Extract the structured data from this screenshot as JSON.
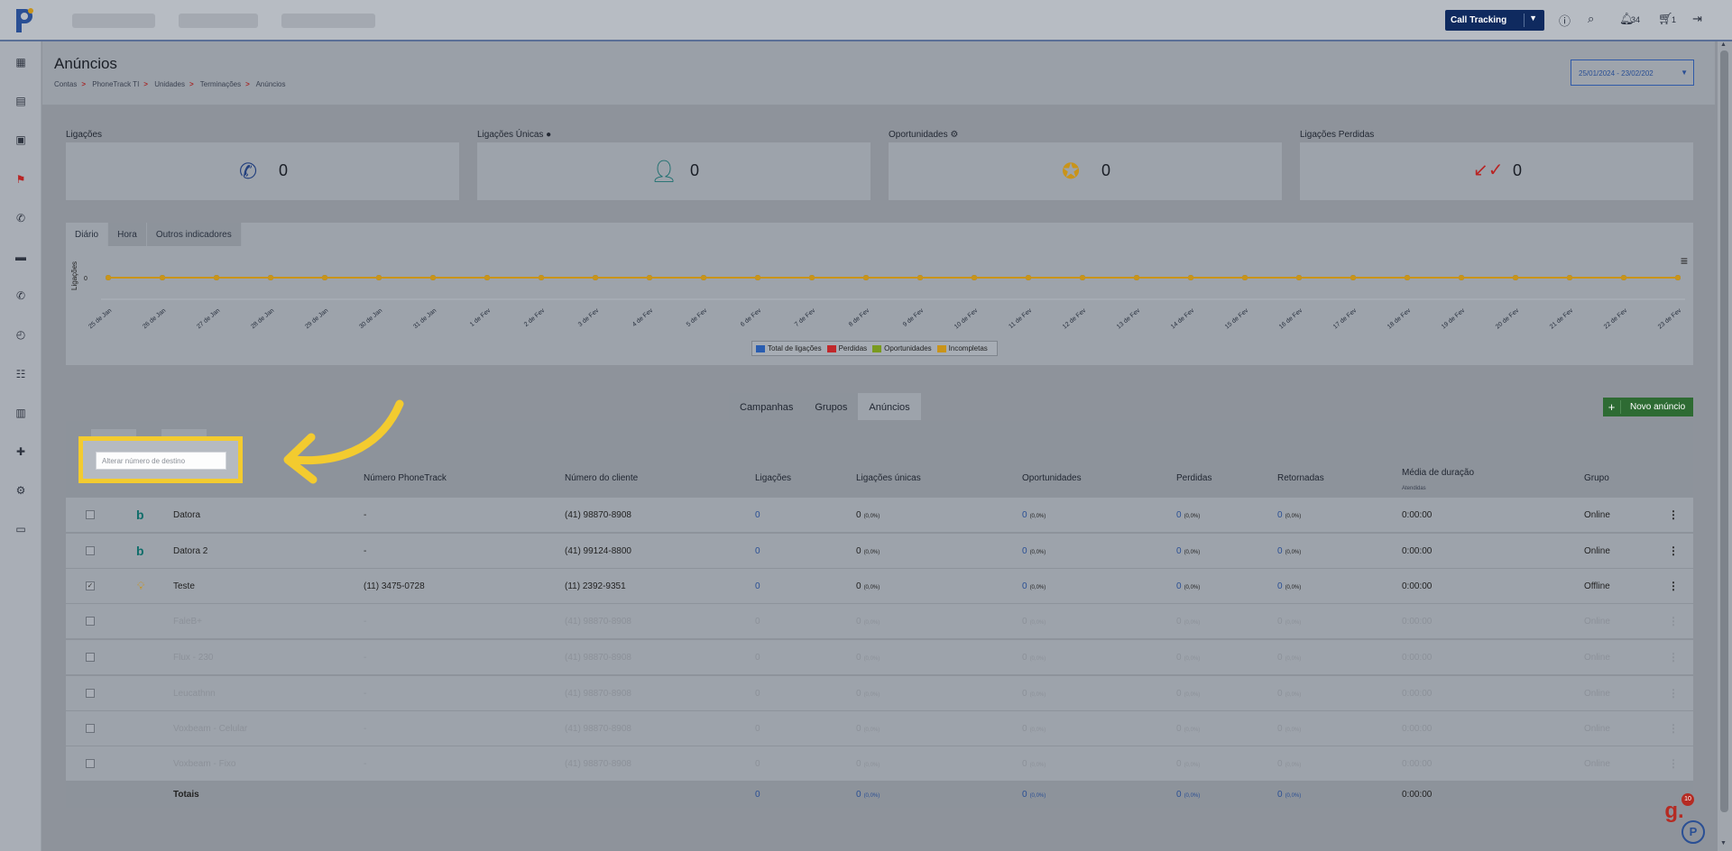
{
  "topbar": {
    "product_button": "Call Tracking",
    "notifications_count": "34",
    "cart_count": "1"
  },
  "page": {
    "title": "Anúncios",
    "breadcrumb": [
      "Contas",
      "PhoneTrack TI",
      "Unidades",
      "Terminações",
      "Anúncios"
    ],
    "date_range": "25/01/2024 - 23/02/202"
  },
  "stats": [
    {
      "label": "Ligações",
      "value": "0",
      "icon": "phone-icon"
    },
    {
      "label": "Ligações Únicas",
      "value": "0",
      "icon": "user-icon"
    },
    {
      "label": "Oportunidades",
      "value": "0",
      "icon": "star-icon"
    },
    {
      "label": "Ligações Perdidas",
      "value": "0",
      "icon": "missed-call-icon"
    }
  ],
  "chart_tabs": [
    "Diário",
    "Hora",
    "Outros indicadores"
  ],
  "chart_data": {
    "type": "line",
    "ylabel": "Ligações",
    "categories": [
      "25 de Jan",
      "26 de Jan",
      "27 de Jan",
      "28 de Jan",
      "29 de Jan",
      "30 de Jan",
      "31 de Jan",
      "1 de Fev",
      "2 de Fev",
      "3 de Fev",
      "4 de Fev",
      "5 de Fev",
      "6 de Fev",
      "7 de Fev",
      "8 de Fev",
      "9 de Fev",
      "10 de Fev",
      "11 de Fev",
      "12 de Fev",
      "13 de Fev",
      "14 de Fev",
      "15 de Fev",
      "16 de Fev",
      "17 de Fev",
      "18 de Fev",
      "19 de Fev",
      "20 de Fev",
      "21 de Fev",
      "22 de Fev",
      "23 de Fev"
    ],
    "series": [
      {
        "name": "Total de ligações",
        "color": "#2a5db0",
        "values": [
          0,
          0,
          0,
          0,
          0,
          0,
          0,
          0,
          0,
          0,
          0,
          0,
          0,
          0,
          0,
          0,
          0,
          0,
          0,
          0,
          0,
          0,
          0,
          0,
          0,
          0,
          0,
          0,
          0,
          0
        ]
      },
      {
        "name": "Perdidas",
        "color": "#c0282b",
        "values": [
          0,
          0,
          0,
          0,
          0,
          0,
          0,
          0,
          0,
          0,
          0,
          0,
          0,
          0,
          0,
          0,
          0,
          0,
          0,
          0,
          0,
          0,
          0,
          0,
          0,
          0,
          0,
          0,
          0,
          0
        ]
      },
      {
        "name": "Oportunidades",
        "color": "#7a9a1f",
        "values": [
          0,
          0,
          0,
          0,
          0,
          0,
          0,
          0,
          0,
          0,
          0,
          0,
          0,
          0,
          0,
          0,
          0,
          0,
          0,
          0,
          0,
          0,
          0,
          0,
          0,
          0,
          0,
          0,
          0,
          0
        ]
      },
      {
        "name": "Incompletas",
        "color": "#c9941a",
        "values": [
          0,
          0,
          0,
          0,
          0,
          0,
          0,
          0,
          0,
          0,
          0,
          0,
          0,
          0,
          0,
          0,
          0,
          0,
          0,
          0,
          0,
          0,
          0,
          0,
          0,
          0,
          0,
          0,
          0,
          0
        ]
      }
    ],
    "yticks": [
      "0"
    ],
    "legend_position": "bottom-center"
  },
  "section_tabs": [
    "Campanhas",
    "Grupos",
    "Anúncios"
  ],
  "new_button": "Novo anúncio",
  "popup": {
    "placeholder": "Alterar número de destino"
  },
  "table": {
    "headers": {
      "phonetrack": "Número PhoneTrack",
      "client": "Número do cliente",
      "calls": "Ligações",
      "unique": "Ligações únicas",
      "opps": "Oportunidades",
      "lost": "Perdidas",
      "returned": "Retornadas",
      "avg": "Média de duração",
      "avg_sub": "Atendidas",
      "group": "Grupo"
    },
    "rows": [
      {
        "name": "Datora",
        "phonetrack": "-",
        "client": "(41) 98870-8908",
        "calls": "0",
        "unique": "0",
        "unique_pct": "(0,0%)",
        "opps": "0",
        "opps_pct": "(0,0%)",
        "lost": "0",
        "lost_pct": "(0,0%)",
        "ret": "0",
        "ret_pct": "(0,0%)",
        "avg": "0:00:00",
        "group": "Online",
        "checked": false,
        "source_icon": "bing-icon",
        "faded": false
      },
      {
        "name": "Datora 2",
        "phonetrack": "-",
        "client": "(41) 99124-8800",
        "calls": "0",
        "unique": "0",
        "unique_pct": "(0,0%)",
        "opps": "0",
        "opps_pct": "(0,0%)",
        "lost": "0",
        "lost_pct": "(0,0%)",
        "ret": "0",
        "ret_pct": "(0,0%)",
        "avg": "0:00:00",
        "group": "Online",
        "checked": false,
        "source_icon": "bing-icon",
        "faded": false
      },
      {
        "name": "Teste",
        "phonetrack": "(11) 3475-0728",
        "client": "(11) 2392-9351",
        "calls": "0",
        "unique": "0",
        "unique_pct": "(0,0%)",
        "opps": "0",
        "opps_pct": "(0,0%)",
        "lost": "0",
        "lost_pct": "(0,0%)",
        "ret": "0",
        "ret_pct": "(0,0%)",
        "avg": "0:00:00",
        "group": "Offline",
        "checked": true,
        "source_icon": "lightbulb-icon",
        "faded": false
      },
      {
        "name": "FaleB+",
        "phonetrack": "-",
        "client": "(41) 98870-8908",
        "calls": "0",
        "unique": "0",
        "unique_pct": "(0,0%)",
        "opps": "0",
        "opps_pct": "(0,0%)",
        "lost": "0",
        "lost_pct": "(0,0%)",
        "ret": "0",
        "ret_pct": "(0,0%)",
        "avg": "0:00:00",
        "group": "Online",
        "checked": false,
        "source_icon": "",
        "faded": true
      },
      {
        "name": "Flux - 230",
        "phonetrack": "-",
        "client": "(41) 98870-8908",
        "calls": "0",
        "unique": "0",
        "unique_pct": "(0,0%)",
        "opps": "0",
        "opps_pct": "(0,0%)",
        "lost": "0",
        "lost_pct": "(0,0%)",
        "ret": "0",
        "ret_pct": "(0,0%)",
        "avg": "0:00:00",
        "group": "Online",
        "checked": false,
        "source_icon": "",
        "faded": true
      },
      {
        "name": "Leucathnn",
        "phonetrack": "-",
        "client": "(41) 98870-8908",
        "calls": "0",
        "unique": "0",
        "unique_pct": "(0,0%)",
        "opps": "0",
        "opps_pct": "(0,0%)",
        "lost": "0",
        "lost_pct": "(0,0%)",
        "ret": "0",
        "ret_pct": "(0,0%)",
        "avg": "0:00:00",
        "group": "Online",
        "checked": false,
        "source_icon": "",
        "faded": true
      },
      {
        "name": "Voxbeam - Celular",
        "phonetrack": "-",
        "client": "(41) 98870-8908",
        "calls": "0",
        "unique": "0",
        "unique_pct": "(0,0%)",
        "opps": "0",
        "opps_pct": "(0,0%)",
        "lost": "0",
        "lost_pct": "(0,0%)",
        "ret": "0",
        "ret_pct": "(0,0%)",
        "avg": "0:00:00",
        "group": "Online",
        "checked": false,
        "source_icon": "",
        "faded": true
      },
      {
        "name": "Voxbeam - Fixo",
        "phonetrack": "-",
        "client": "(41) 98870-8908",
        "calls": "0",
        "unique": "0",
        "unique_pct": "(0,0%)",
        "opps": "0",
        "opps_pct": "(0,0%)",
        "lost": "0",
        "lost_pct": "(0,0%)",
        "ret": "0",
        "ret_pct": "(0,0%)",
        "avg": "0:00:00",
        "group": "Online",
        "checked": false,
        "source_icon": "",
        "faded": true
      }
    ],
    "totals": {
      "label": "Totais",
      "calls": "0",
      "unique": "0",
      "unique_pct": "(0,0%)",
      "opps": "0",
      "opps_pct": "(0,0%)",
      "lost": "0",
      "lost_pct": "(0,0%)",
      "ret": "0",
      "ret_pct": "(0,0%)",
      "avg": "0:00:00"
    }
  },
  "floating": {
    "badge": "10"
  }
}
